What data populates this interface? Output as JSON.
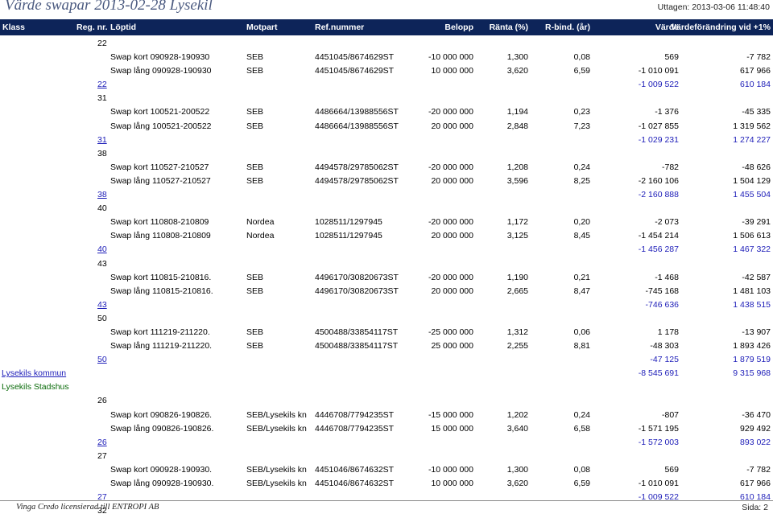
{
  "header": {
    "title": "Värde swapar 2013-02-28   Lysekil",
    "printed": "Uttagen: 2013-03-06 11:48:40"
  },
  "columns": {
    "klass": "Klass",
    "regnr": "Reg. nr.",
    "loptid": "Löptid",
    "motpart": "Motpart",
    "refnummer": "Ref.nummer",
    "belopp": "Belopp",
    "ranta": "Ränta (%)",
    "rbind": "R-bind. (år)",
    "varde": "Värde",
    "vardeforandring": "Värdeförändring vid +1%"
  },
  "rows": [
    {
      "kind": "group",
      "label": "22"
    },
    {
      "kind": "data",
      "typ": "Swap kort 090928-190930",
      "motpart": "SEB",
      "ref": "4451045/8674629ST",
      "belopp": "-10 000 000",
      "ranta": "1,300",
      "rbind": "0,08",
      "varde": "569",
      "vf": "-7 782"
    },
    {
      "kind": "data",
      "typ": "Swap lång 090928-190930",
      "motpart": "SEB",
      "ref": "4451045/8674629ST",
      "belopp": "10 000 000",
      "ranta": "3,620",
      "rbind": "6,59",
      "varde": "-1 010 091",
      "vf": "617 966"
    },
    {
      "kind": "total",
      "label": "22",
      "varde": "-1 009 522",
      "vf": "610 184"
    },
    {
      "kind": "group",
      "label": "31"
    },
    {
      "kind": "data",
      "typ": "Swap kort 100521-200522",
      "motpart": "SEB",
      "ref": "4486664/13988556ST",
      "belopp": "-20 000 000",
      "ranta": "1,194",
      "rbind": "0,23",
      "varde": "-1 376",
      "vf": "-45 335"
    },
    {
      "kind": "data",
      "typ": "Swap lång 100521-200522",
      "motpart": "SEB",
      "ref": "4486664/13988556ST",
      "belopp": "20 000 000",
      "ranta": "2,848",
      "rbind": "7,23",
      "varde": "-1 027 855",
      "vf": "1 319 562"
    },
    {
      "kind": "total",
      "label": "31",
      "varde": "-1 029 231",
      "vf": "1 274 227"
    },
    {
      "kind": "group",
      "label": "38"
    },
    {
      "kind": "data",
      "typ": "Swap kort 110527-210527",
      "motpart": "SEB",
      "ref": "4494578/29785062ST",
      "belopp": "-20 000 000",
      "ranta": "1,208",
      "rbind": "0,24",
      "varde": "-782",
      "vf": "-48 626"
    },
    {
      "kind": "data",
      "typ": "Swap lång 110527-210527",
      "motpart": "SEB",
      "ref": "4494578/29785062ST",
      "belopp": "20 000 000",
      "ranta": "3,596",
      "rbind": "8,25",
      "varde": "-2 160 106",
      "vf": "1 504 129"
    },
    {
      "kind": "total",
      "label": "38",
      "varde": "-2 160 888",
      "vf": "1 455 504"
    },
    {
      "kind": "group",
      "label": "40"
    },
    {
      "kind": "data",
      "typ": "Swap kort 110808-210809",
      "motpart": "Nordea",
      "ref": "1028511/1297945",
      "belopp": "-20 000 000",
      "ranta": "1,172",
      "rbind": "0,20",
      "varde": "-2 073",
      "vf": "-39 291"
    },
    {
      "kind": "data",
      "typ": "Swap lång 110808-210809",
      "motpart": "Nordea",
      "ref": "1028511/1297945",
      "belopp": "20 000 000",
      "ranta": "3,125",
      "rbind": "8,45",
      "varde": "-1 454 214",
      "vf": "1 506 613"
    },
    {
      "kind": "total",
      "label": "40",
      "varde": "-1 456 287",
      "vf": "1 467 322"
    },
    {
      "kind": "group",
      "label": "43"
    },
    {
      "kind": "data",
      "typ": "Swap kort 110815-210816.",
      "motpart": "SEB",
      "ref": "4496170/30820673ST",
      "belopp": "-20 000 000",
      "ranta": "1,190",
      "rbind": "0,21",
      "varde": "-1 468",
      "vf": "-42 587"
    },
    {
      "kind": "data",
      "typ": "Swap lång 110815-210816.",
      "motpart": "SEB",
      "ref": "4496170/30820673ST",
      "belopp": "20 000 000",
      "ranta": "2,665",
      "rbind": "8,47",
      "varde": "-745 168",
      "vf": "1 481 103"
    },
    {
      "kind": "total",
      "label": "43",
      "varde": "-746 636",
      "vf": "1 438 515"
    },
    {
      "kind": "group",
      "label": "50"
    },
    {
      "kind": "data",
      "typ": "Swap kort 111219-211220.",
      "motpart": "SEB",
      "ref": "4500488/33854117ST",
      "belopp": "-25 000 000",
      "ranta": "1,312",
      "rbind": "0,06",
      "varde": "1 178",
      "vf": "-13 907"
    },
    {
      "kind": "data",
      "typ": "Swap lång 111219-211220.",
      "motpart": "SEB",
      "ref": "4500488/33854117ST",
      "belopp": "25 000 000",
      "ranta": "2,255",
      "rbind": "8,81",
      "varde": "-48 303",
      "vf": "1 893 426"
    },
    {
      "kind": "total",
      "label": "50",
      "varde": "-47 125",
      "vf": "1 879 519"
    },
    {
      "kind": "orgtotal",
      "label": "Lysekils kommun",
      "varde": "-8 545 691",
      "vf": "9 315 968"
    },
    {
      "kind": "org",
      "label": "Lysekils Stadshus"
    },
    {
      "kind": "group",
      "label": "26"
    },
    {
      "kind": "data",
      "typ": "Swap kort 090826-190826.",
      "motpart": "SEB/Lysekils kn",
      "ref": "4446708/7794235ST",
      "belopp": "-15 000 000",
      "ranta": "1,202",
      "rbind": "0,24",
      "varde": "-807",
      "vf": "-36 470"
    },
    {
      "kind": "data",
      "typ": "Swap lång 090826-190826.",
      "motpart": "SEB/Lysekils kn",
      "ref": "4446708/7794235ST",
      "belopp": "15 000 000",
      "ranta": "3,640",
      "rbind": "6,58",
      "varde": "-1 571 195",
      "vf": "929 492"
    },
    {
      "kind": "total",
      "label": "26",
      "varde": "-1 572 003",
      "vf": "893 022"
    },
    {
      "kind": "group",
      "label": "27"
    },
    {
      "kind": "data",
      "typ": "Swap kort 090928-190930.",
      "motpart": "SEB/Lysekils kn",
      "ref": "4451046/8674632ST",
      "belopp": "-10 000 000",
      "ranta": "1,300",
      "rbind": "0,08",
      "varde": "569",
      "vf": "-7 782"
    },
    {
      "kind": "data",
      "typ": "Swap lång 090928-190930.",
      "motpart": "SEB/Lysekils kn",
      "ref": "4451046/8674632ST",
      "belopp": "10 000 000",
      "ranta": "3,620",
      "rbind": "6,59",
      "varde": "-1 010 091",
      "vf": "617 966"
    },
    {
      "kind": "total",
      "label": "27",
      "varde": "-1 009 522",
      "vf": "610 184"
    },
    {
      "kind": "group",
      "label": "32"
    }
  ],
  "footer": {
    "vendor": "Vinga Credo   licensierad till   ENTROPI AB",
    "page": "Sida: 2"
  }
}
